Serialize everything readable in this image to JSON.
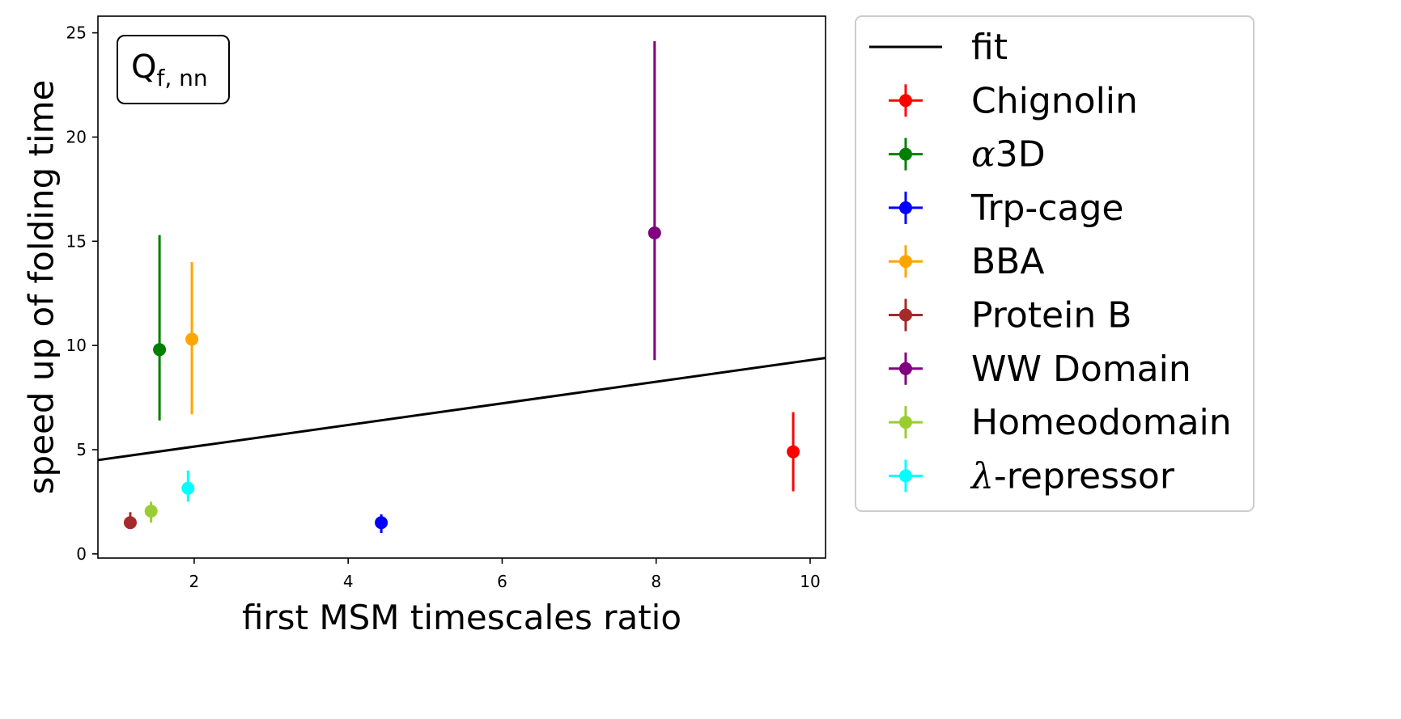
{
  "chart_data": {
    "type": "scatter",
    "xlabel": "first MSM timescales ratio",
    "ylabel": "speed up of folding time",
    "xlim": [
      0.75,
      10.2
    ],
    "ylim": [
      -0.2,
      25.8
    ],
    "xticks": [
      2,
      4,
      6,
      8,
      10
    ],
    "yticks": [
      0,
      5,
      10,
      15,
      20,
      25
    ],
    "annotation": {
      "base": "Q",
      "subscript": "f, nn",
      "location": "top-left"
    },
    "legend_location": "outside-right",
    "fit": {
      "name": "fit",
      "color": "#000000",
      "x": [
        0.75,
        10.2
      ],
      "y": [
        4.5,
        9.4
      ]
    },
    "series": [
      {
        "name": "Chignolin",
        "name_prefix": "",
        "name_rest": "Chignolin",
        "color": "#ff0000",
        "x": 9.78,
        "y": 4.9,
        "yerr_low": 3.0,
        "yerr_high": 6.8
      },
      {
        "name": "α3D",
        "name_prefix": "α",
        "name_rest": "3D",
        "color": "#008000",
        "x": 1.55,
        "y": 9.8,
        "yerr_low": 6.4,
        "yerr_high": 15.3
      },
      {
        "name": "Trp-cage",
        "name_prefix": "",
        "name_rest": "Trp-cage",
        "color": "#0000ff",
        "x": 4.43,
        "y": 1.5,
        "yerr_low": 1.0,
        "yerr_high": 1.9
      },
      {
        "name": "BBA",
        "name_prefix": "",
        "name_rest": "BBA",
        "color": "#ffa500",
        "x": 1.97,
        "y": 10.3,
        "yerr_low": 6.7,
        "yerr_high": 14.0
      },
      {
        "name": "Protein B",
        "name_prefix": "",
        "name_rest": "Protein B",
        "color": "#a52a2a",
        "x": 1.17,
        "y": 1.5,
        "yerr_low": 1.2,
        "yerr_high": 2.0
      },
      {
        "name": "WW Domain",
        "name_prefix": "",
        "name_rest": "WW Domain",
        "color": "#800080",
        "x": 7.98,
        "y": 15.4,
        "yerr_low": 9.3,
        "yerr_high": 24.6
      },
      {
        "name": "Homeodomain",
        "name_prefix": "",
        "name_rest": "Homeodomain",
        "color": "#9acd32",
        "x": 1.44,
        "y": 2.05,
        "yerr_low": 1.5,
        "yerr_high": 2.5
      },
      {
        "name": "λ-repressor",
        "name_prefix": "λ",
        "name_rest": "-repressor",
        "color": "#00ffff",
        "x": 1.92,
        "y": 3.15,
        "yerr_low": 2.5,
        "yerr_high": 4.0
      }
    ]
  }
}
